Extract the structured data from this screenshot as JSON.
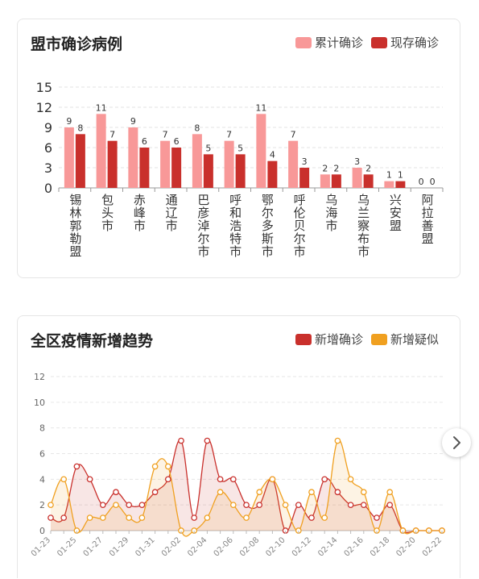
{
  "card1": {
    "title": "盟市确诊病例",
    "legend": [
      {
        "label": "累计确诊",
        "color": "#f89898"
      },
      {
        "label": "现存确诊",
        "color": "#c9302c"
      }
    ]
  },
  "card2": {
    "title": "全区疫情新增趋势",
    "legend": [
      {
        "label": "新增确诊",
        "color": "#c9302c"
      },
      {
        "label": "新增疑似",
        "color": "#f0a020"
      }
    ]
  },
  "next_icon": "chevron-right-icon",
  "chart_data": [
    {
      "type": "bar",
      "title": "盟市确诊病例",
      "categories": [
        "锡林郭勒盟",
        "包头市",
        "赤峰市",
        "通辽市",
        "巴彦淖尔市",
        "呼和浩特市",
        "鄂尔多斯市",
        "呼伦贝尔市",
        "乌海市",
        "乌兰察布市",
        "兴安盟",
        "阿拉善盟"
      ],
      "series": [
        {
          "name": "累计确诊",
          "color": "#f89898",
          "values": [
            9,
            11,
            9,
            7,
            8,
            7,
            11,
            7,
            2,
            3,
            1,
            0
          ]
        },
        {
          "name": "现存确诊",
          "color": "#c9302c",
          "values": [
            8,
            7,
            6,
            6,
            5,
            5,
            4,
            3,
            2,
            2,
            1,
            0
          ]
        }
      ],
      "ylim": [
        0,
        15
      ],
      "yticks": [
        0,
        3,
        6,
        9,
        12,
        15
      ],
      "grid": true,
      "legend_position": "top-right"
    },
    {
      "type": "line",
      "title": "全区疫情新增趋势",
      "x": [
        "01-23",
        "01-24",
        "01-25",
        "01-26",
        "01-27",
        "01-28",
        "01-29",
        "01-30",
        "01-31",
        "02-01",
        "02-02",
        "02-03",
        "02-04",
        "02-05",
        "02-06",
        "02-07",
        "02-08",
        "02-09",
        "02-10",
        "02-11",
        "02-12",
        "02-13",
        "02-14",
        "02-15",
        "02-16",
        "02-17",
        "02-18",
        "02-19",
        "02-20",
        "02-21",
        "02-22"
      ],
      "xtick_labels": [
        "01-23",
        "01-25",
        "01-27",
        "01-29",
        "01-31",
        "02-02",
        "02-04",
        "02-06",
        "02-08",
        "02-10",
        "02-12",
        "02-14",
        "02-16",
        "02-18",
        "02-20",
        "02-22"
      ],
      "series": [
        {
          "name": "新增确诊",
          "color": "#c9302c",
          "values": [
            1,
            1,
            5,
            4,
            2,
            3,
            2,
            2,
            3,
            4,
            7,
            1,
            7,
            4,
            4,
            2,
            2,
            4,
            0,
            2,
            1,
            4,
            3,
            2,
            2,
            1,
            2,
            0,
            0,
            0,
            0
          ]
        },
        {
          "name": "新增疑似",
          "color": "#f0a020",
          "values": [
            2,
            4,
            0,
            1,
            1,
            2,
            1,
            1,
            5,
            5,
            0,
            0,
            1,
            3,
            2,
            1,
            3,
            4,
            2,
            0,
            3,
            1,
            7,
            4,
            3,
            0,
            3,
            0,
            0,
            0,
            0
          ]
        }
      ],
      "ylim": [
        0,
        12
      ],
      "yticks": [
        0,
        2,
        4,
        6,
        8,
        10,
        12
      ],
      "grid": true,
      "legend_position": "top-right"
    }
  ]
}
